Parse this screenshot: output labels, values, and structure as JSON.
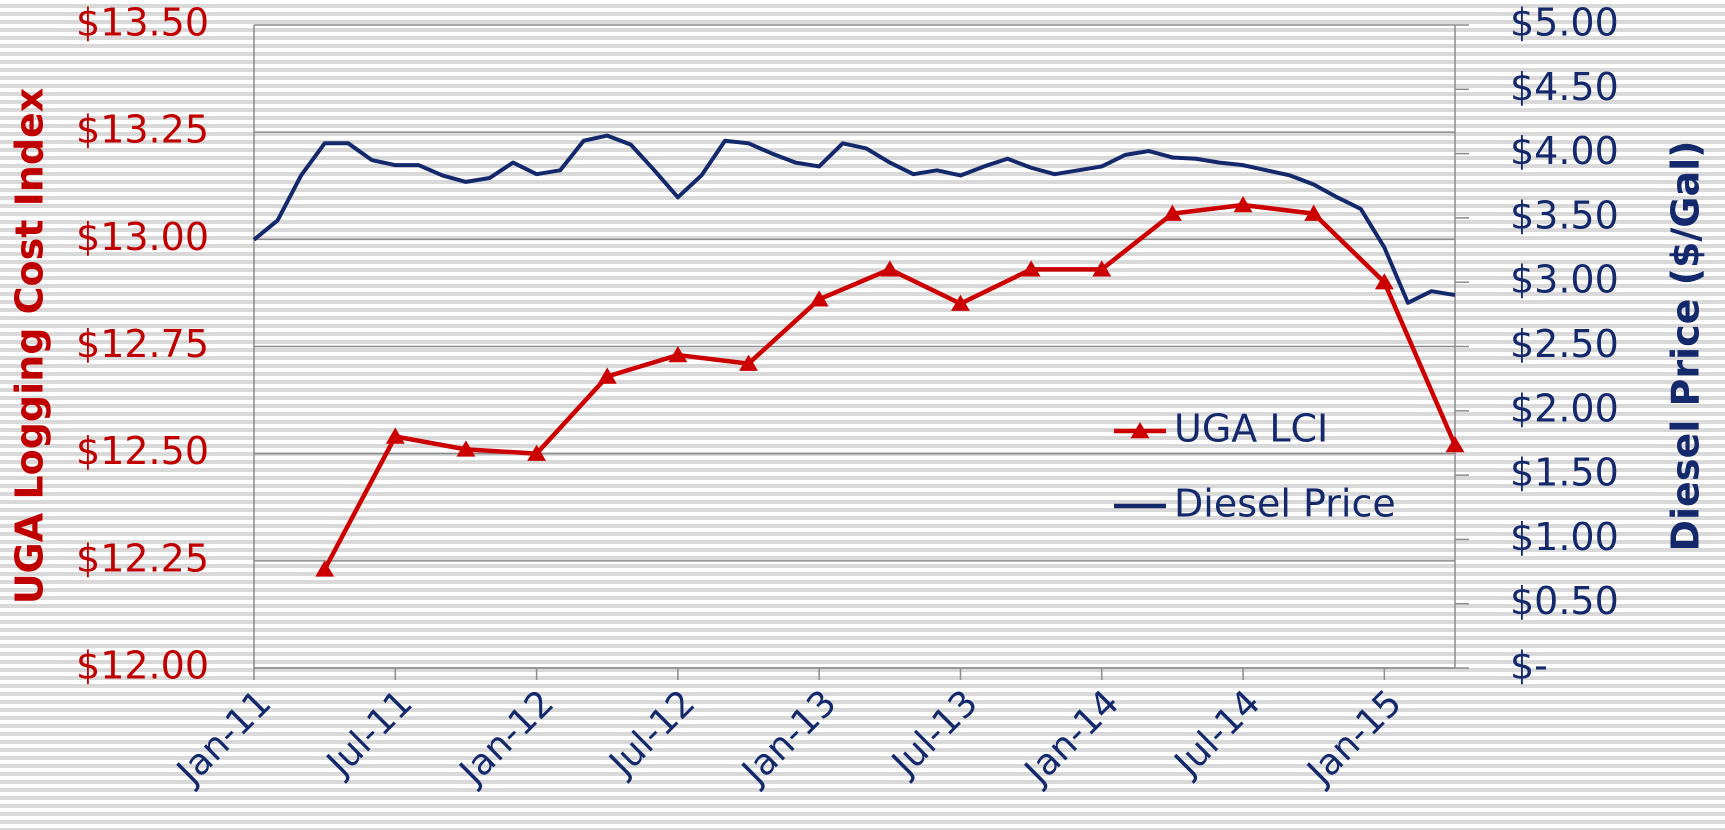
{
  "chart_data": {
    "type": "line",
    "y_label": "UGA Logging Cost Index",
    "y2_label": "Diesel Price ($/Gal)",
    "series": [
      {
        "name": "UGA LCI",
        "color": "#cc0000",
        "marker": "triangle",
        "x": [
          "Apr-11",
          "Jul-11",
          "Oct-11",
          "Jan-12",
          "Apr-12",
          "Jul-12",
          "Oct-12",
          "Jan-13",
          "Apr-13",
          "Jul-13",
          "Oct-13",
          "Jan-14",
          "Apr-14",
          "Jul-14",
          "Oct-14",
          "Jan-15",
          "Apr-15"
        ],
        "values": [
          12.23,
          12.54,
          12.51,
          12.5,
          12.68,
          12.73,
          12.71,
          12.86,
          12.93,
          12.85,
          12.93,
          12.93,
          13.06,
          13.08,
          13.06,
          12.9,
          12.52
        ]
      },
      {
        "name": "Diesel Price",
        "color": "#14296b",
        "axis": "y2",
        "x": [
          "Jan-11",
          "Feb-11",
          "Mar-11",
          "Apr-11",
          "May-11",
          "Jun-11",
          "Jul-11",
          "Aug-11",
          "Sep-11",
          "Oct-11",
          "Nov-11",
          "Dec-11",
          "Jan-12",
          "Feb-12",
          "Mar-12",
          "Apr-12",
          "May-12",
          "Jun-12",
          "Jul-12",
          "Aug-12",
          "Sep-12",
          "Oct-12",
          "Nov-12",
          "Dec-12",
          "Jan-13",
          "Feb-13",
          "Mar-13",
          "Apr-13",
          "May-13",
          "Jun-13",
          "Jul-13",
          "Aug-13",
          "Sep-13",
          "Oct-13",
          "Nov-13",
          "Dec-13",
          "Jan-14",
          "Feb-14",
          "Mar-14",
          "Apr-14",
          "May-14",
          "Jun-14",
          "Jul-14",
          "Aug-14",
          "Sep-14",
          "Oct-14",
          "Nov-14",
          "Dec-14",
          "Jan-15",
          "Feb-15",
          "Mar-15",
          "Apr-15"
        ],
        "values": [
          3.33,
          3.48,
          3.83,
          4.08,
          4.08,
          3.95,
          3.91,
          3.91,
          3.83,
          3.78,
          3.81,
          3.93,
          3.84,
          3.87,
          4.1,
          4.14,
          4.07,
          3.87,
          3.66,
          3.83,
          4.1,
          4.08,
          4.0,
          3.93,
          3.9,
          4.08,
          4.04,
          3.93,
          3.84,
          3.87,
          3.83,
          3.9,
          3.96,
          3.89,
          3.84,
          3.87,
          3.9,
          3.99,
          4.02,
          3.97,
          3.96,
          3.93,
          3.91,
          3.87,
          3.83,
          3.76,
          3.66,
          3.57,
          3.27,
          2.84,
          2.93,
          2.9
        ]
      }
    ],
    "xlim": [
      "Jan-11",
      "Apr-15"
    ],
    "xticks": [
      "Jan-11",
      "Jul-11",
      "Jan-12",
      "Jul-12",
      "Jan-13",
      "Jul-13",
      "Jan-14",
      "Jul-14",
      "Jan-15"
    ],
    "ylim": [
      12.0,
      13.5
    ],
    "yticks": [
      {
        "value": 12.0,
        "label": "$12.00"
      },
      {
        "value": 12.25,
        "label": "$12.25"
      },
      {
        "value": 12.5,
        "label": "$12.50"
      },
      {
        "value": 12.75,
        "label": "$12.75"
      },
      {
        "value": 13.0,
        "label": "$13.00"
      },
      {
        "value": 13.25,
        "label": "$13.25"
      },
      {
        "value": 13.5,
        "label": "$13.50"
      }
    ],
    "y2lim": [
      0,
      5
    ],
    "y2ticks": [
      {
        "value": 0,
        "label": "$-"
      },
      {
        "value": 0.5,
        "label": "$0.50"
      },
      {
        "value": 1,
        "label": "$1.00"
      },
      {
        "value": 1.5,
        "label": "$1.50"
      },
      {
        "value": 2,
        "label": "$2.00"
      },
      {
        "value": 2.5,
        "label": "$2.50"
      },
      {
        "value": 3,
        "label": "$3.00"
      },
      {
        "value": 3.5,
        "label": "$3.50"
      },
      {
        "value": 4,
        "label": "$4.00"
      },
      {
        "value": 4.5,
        "label": "$4.50"
      },
      {
        "value": 5,
        "label": "$5.00"
      }
    ],
    "y_color": "#c00000",
    "y2_color": "#14296b",
    "grid": true,
    "legend": "center right"
  }
}
